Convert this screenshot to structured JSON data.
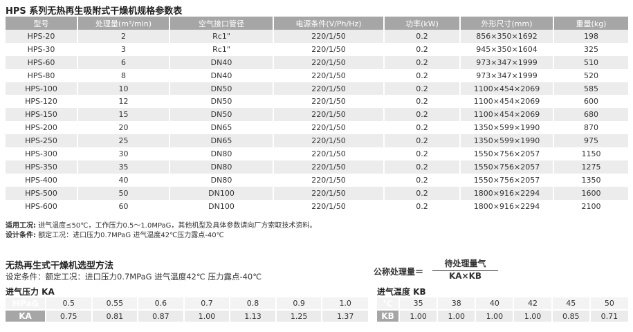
{
  "title": "HPS 系列无热再生吸附式干燥机规格参数表",
  "spec_table": {
    "header": [
      "型号",
      "处理量(m³/min)",
      "空气接口管径",
      "电源条件(V/Ph/Hz)",
      "功率(kW)",
      "外形尺寸(mm)",
      "重量(kg)"
    ],
    "rows": [
      [
        "HPS-20",
        "2",
        "Rc1\"",
        "220/1/50",
        "0.2",
        "856×350×1692",
        "198"
      ],
      [
        "HPS-30",
        "3",
        "Rc1\"",
        "220/1/50",
        "0.2",
        "945×350×1604",
        "325"
      ],
      [
        "HPS-60",
        "6",
        "DN40",
        "220/1/50",
        "0.2",
        "973×347×1999",
        "510"
      ],
      [
        "HPS-80",
        "8",
        "DN40",
        "220/1/50",
        "0.2",
        "973×347×1999",
        "520"
      ],
      [
        "HPS-100",
        "10",
        "DN50",
        "220/1/50",
        "0.2",
        "1100×454×2069",
        "585"
      ],
      [
        "HPS-120",
        "12",
        "DN50",
        "220/1/50",
        "0.2",
        "1100×454×2069",
        "600"
      ],
      [
        "HPS-150",
        "15",
        "DN50",
        "220/1/50",
        "0.2",
        "1100×454×2069",
        "680"
      ],
      [
        "HPS-200",
        "20",
        "DN65",
        "220/1/50",
        "0.2",
        "1350×599×1990",
        "870"
      ],
      [
        "HPS-250",
        "25",
        "DN65",
        "220/1/50",
        "0.2",
        "1350×599×1990",
        "975"
      ],
      [
        "HPS-300",
        "30",
        "DN80",
        "220/1/50",
        "0.2",
        "1550×756×2057",
        "1150"
      ],
      [
        "HPS-350",
        "35",
        "DN80",
        "220/1/50",
        "0.2",
        "1550×756×2057",
        "1275"
      ],
      [
        "HPS-400",
        "40",
        "DN80",
        "220/1/50",
        "0.2",
        "1550×756×2057",
        "1350"
      ],
      [
        "HPS-500",
        "50",
        "DN100",
        "220/1/50",
        "0.2",
        "1800×916×2294",
        "1600"
      ],
      [
        "HPS-600",
        "60",
        "DN100",
        "220/1/50",
        "0.2",
        "1800×916×2294",
        "2100"
      ]
    ]
  },
  "notes": [
    {
      "label": "适用工况:",
      "text": "进气温度≤50℃，工作压力0.5～1.0MPaG，其他机型及具体参数请向厂方索取技术资料。"
    },
    {
      "label": "设计条件:",
      "text": "额定工况：进口压力0.7MPaG 进气温度42℃压力露点-40℃"
    }
  ],
  "selection": {
    "title": "无热再生式干燥机选型方法",
    "subtitle": "设定条件：额定工况：进口压力0.7MPaG 进气温度42℃  压力露点-40℃",
    "formula": {
      "label": "公称处理量＝",
      "numerator": "待处理量气",
      "denominator": "KA×KB"
    },
    "ka": {
      "title": "进气压力 KA",
      "rows": [
        [
          "MPaG",
          "0.5",
          "0.55",
          "0.6",
          "0.7",
          "0.8",
          "0.9",
          "1.0"
        ],
        [
          "KA",
          "0.75",
          "0.81",
          "0.87",
          "1.00",
          "1.13",
          "1.25",
          "1.37"
        ]
      ]
    },
    "kb": {
      "title": "进气温度 KB",
      "rows": [
        [
          "℃",
          "35",
          "38",
          "40",
          "42",
          "45",
          "50"
        ],
        [
          "KB",
          "1.00",
          "1.00",
          "1.00",
          "1.00",
          "0.85",
          "0.71"
        ]
      ]
    }
  }
}
